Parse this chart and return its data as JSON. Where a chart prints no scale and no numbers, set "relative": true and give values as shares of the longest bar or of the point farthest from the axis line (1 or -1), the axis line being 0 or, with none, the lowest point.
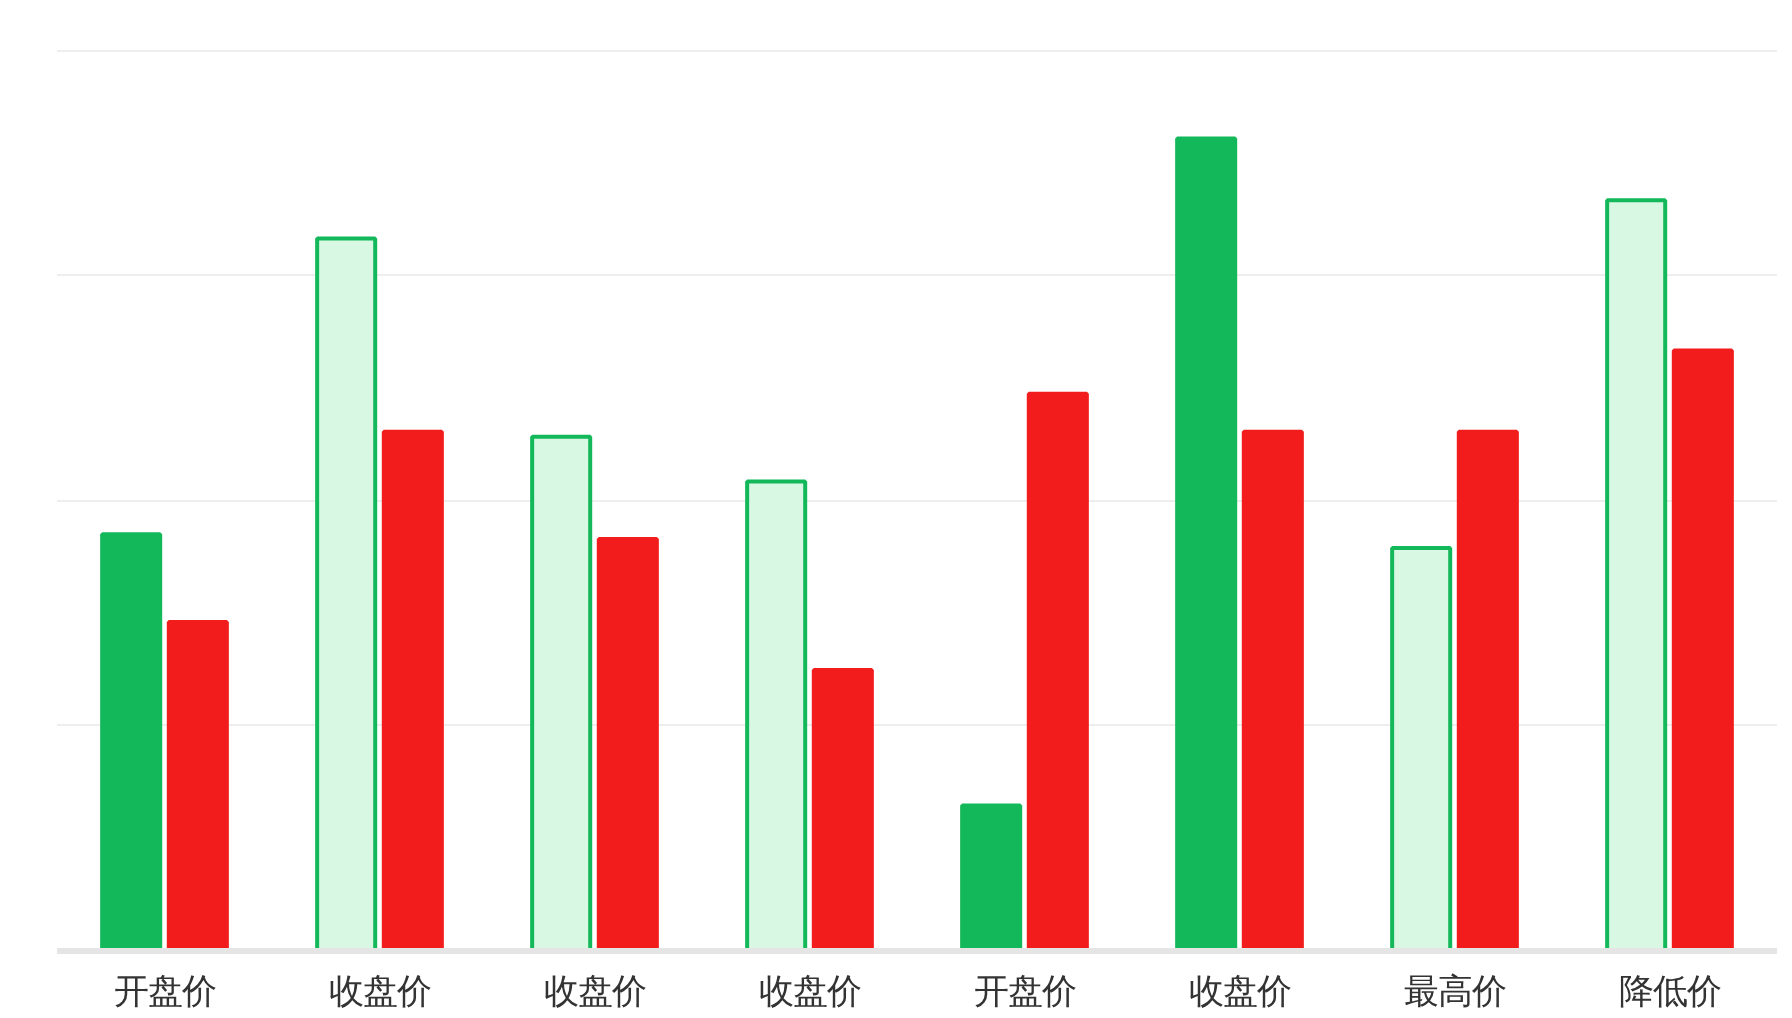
{
  "chart_data": {
    "type": "bar",
    "relative": true,
    "grid": "y",
    "categories": [
      "开盘价",
      "收盘价",
      "收盘价",
      "收盘价",
      "开盘价",
      "收盘价",
      "最高价",
      "降低价"
    ],
    "series": [
      {
        "color": "#12b85a",
        "colors": [
          "#12b85a",
          "#d8f8e4",
          "#d8f8e4",
          "#d8f8e4",
          "#12b85a",
          "#12b85a",
          "#d8f8e4",
          "#d8f8e4"
        ],
        "values": [
          0.513,
          0.877,
          0.633,
          0.578,
          0.179,
          1,
          0.496,
          0.924
        ]
      },
      {
        "color": "#f31c1c",
        "values": [
          0.405,
          0.639,
          0.507,
          0.346,
          0.686,
          0.639,
          0.639,
          0.739
        ]
      }
    ]
  }
}
